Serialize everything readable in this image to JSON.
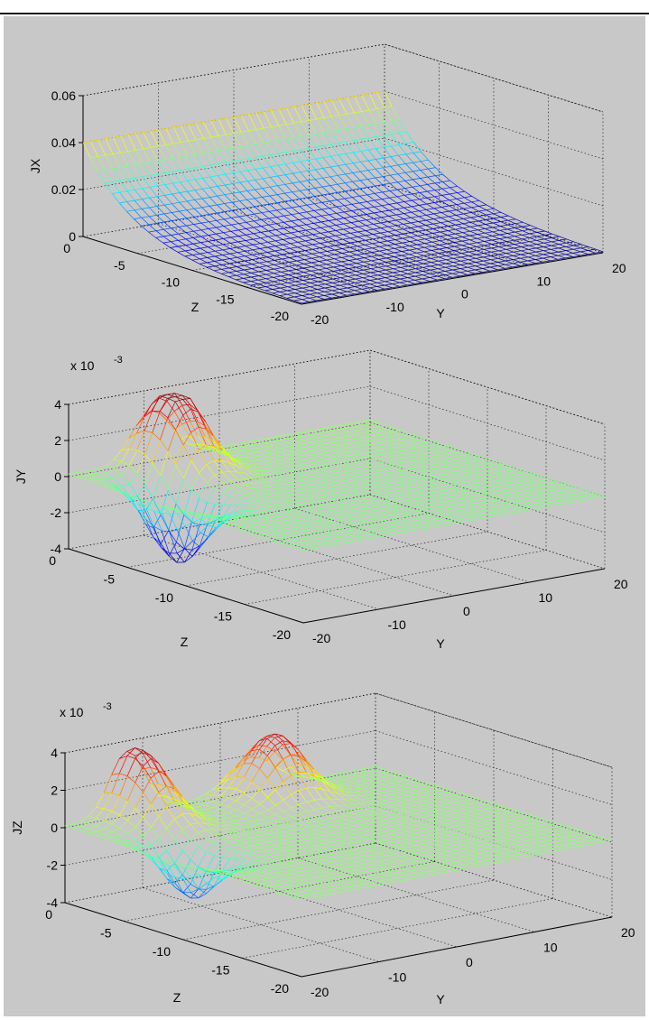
{
  "figure_background": "#c8c8c8",
  "colormap": "jet",
  "chart_data": [
    {
      "type": "surface-mesh",
      "zlabel": "JX",
      "xlabel": "Y",
      "ylabel": "Z",
      "exponent_label": "",
      "x_range": [
        -20,
        20
      ],
      "y_range": [
        -20,
        0
      ],
      "z_range": [
        0,
        0.06
      ],
      "x_ticks": [
        "-20",
        "-10",
        "0",
        "10",
        "20"
      ],
      "y_ticks": [
        "0",
        "-5",
        "-10",
        "-15",
        "-20"
      ],
      "z_ticks": [
        "0",
        "0.02",
        "0.04",
        "0.06"
      ],
      "grid": true,
      "surface": {
        "shape": "exponential decay along Z, uniform along Y",
        "value_at_Z0": 0.04,
        "value_at_Z_minus20": 0.0
      }
    },
    {
      "type": "surface-mesh",
      "zlabel": "JY",
      "xlabel": "Y",
      "ylabel": "Z",
      "exponent_label": "x 10",
      "exponent_power": "-3",
      "x_range": [
        -20,
        20
      ],
      "y_range": [
        -20,
        0
      ],
      "z_range": [
        -4,
        4
      ],
      "x_ticks": [
        "-20",
        "-10",
        "0",
        "10",
        "20"
      ],
      "y_ticks": [
        "0",
        "-5",
        "-10",
        "-15",
        "-20"
      ],
      "z_ticks": [
        "-4",
        "-2",
        "0",
        "2",
        "4"
      ],
      "grid": true,
      "surface": {
        "shape": "antisymmetric peak/trough pair near Z=0, flat elsewhere",
        "peak_value": 4.2,
        "trough_value": -4.0
      }
    },
    {
      "type": "surface-mesh",
      "zlabel": "JZ",
      "xlabel": "Y",
      "ylabel": "Z",
      "exponent_label": "x 10",
      "exponent_power": "-3",
      "x_range": [
        -20,
        20
      ],
      "y_range": [
        -20,
        0
      ],
      "z_range": [
        -4,
        4
      ],
      "x_ticks": [
        "-20",
        "-10",
        "0",
        "10",
        "20"
      ],
      "y_ticks": [
        "0",
        "-5",
        "-10",
        "-15",
        "-20"
      ],
      "z_ticks": [
        "-4",
        "-2",
        "0",
        "2",
        "4"
      ],
      "grid": true,
      "surface": {
        "shape": "two positive ridges near Z=0 with small negative dip",
        "peak_value": 3.6,
        "trough_value": -2.6
      }
    }
  ]
}
